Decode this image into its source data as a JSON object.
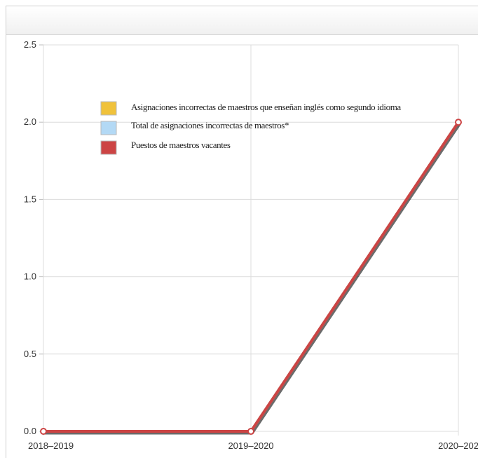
{
  "chart_data": {
    "type": "line",
    "title": "",
    "xlabel": "",
    "ylabel": "",
    "categories": [
      "2018–2019",
      "2019–2020",
      "2020–202"
    ],
    "ylim": [
      0,
      2.5
    ],
    "yticks": [
      "0.0",
      "0.5",
      "1.0",
      "1.5",
      "2.0",
      "2.5"
    ],
    "grid": true,
    "legend_position": "top-left",
    "series": [
      {
        "name": "Asignaciones incorrectas de maestros que enseñan inglés como segundo idioma",
        "color": "#f0c23b",
        "values": [
          0,
          0,
          2
        ]
      },
      {
        "name": "Total de asignaciones incorrectas de maestros*",
        "color": "#b3d9f5",
        "values": [
          0,
          0,
          2
        ]
      },
      {
        "name": "Puestos de maestros vacantes",
        "color": "#cc4444",
        "values": [
          0,
          0,
          2
        ]
      }
    ]
  }
}
